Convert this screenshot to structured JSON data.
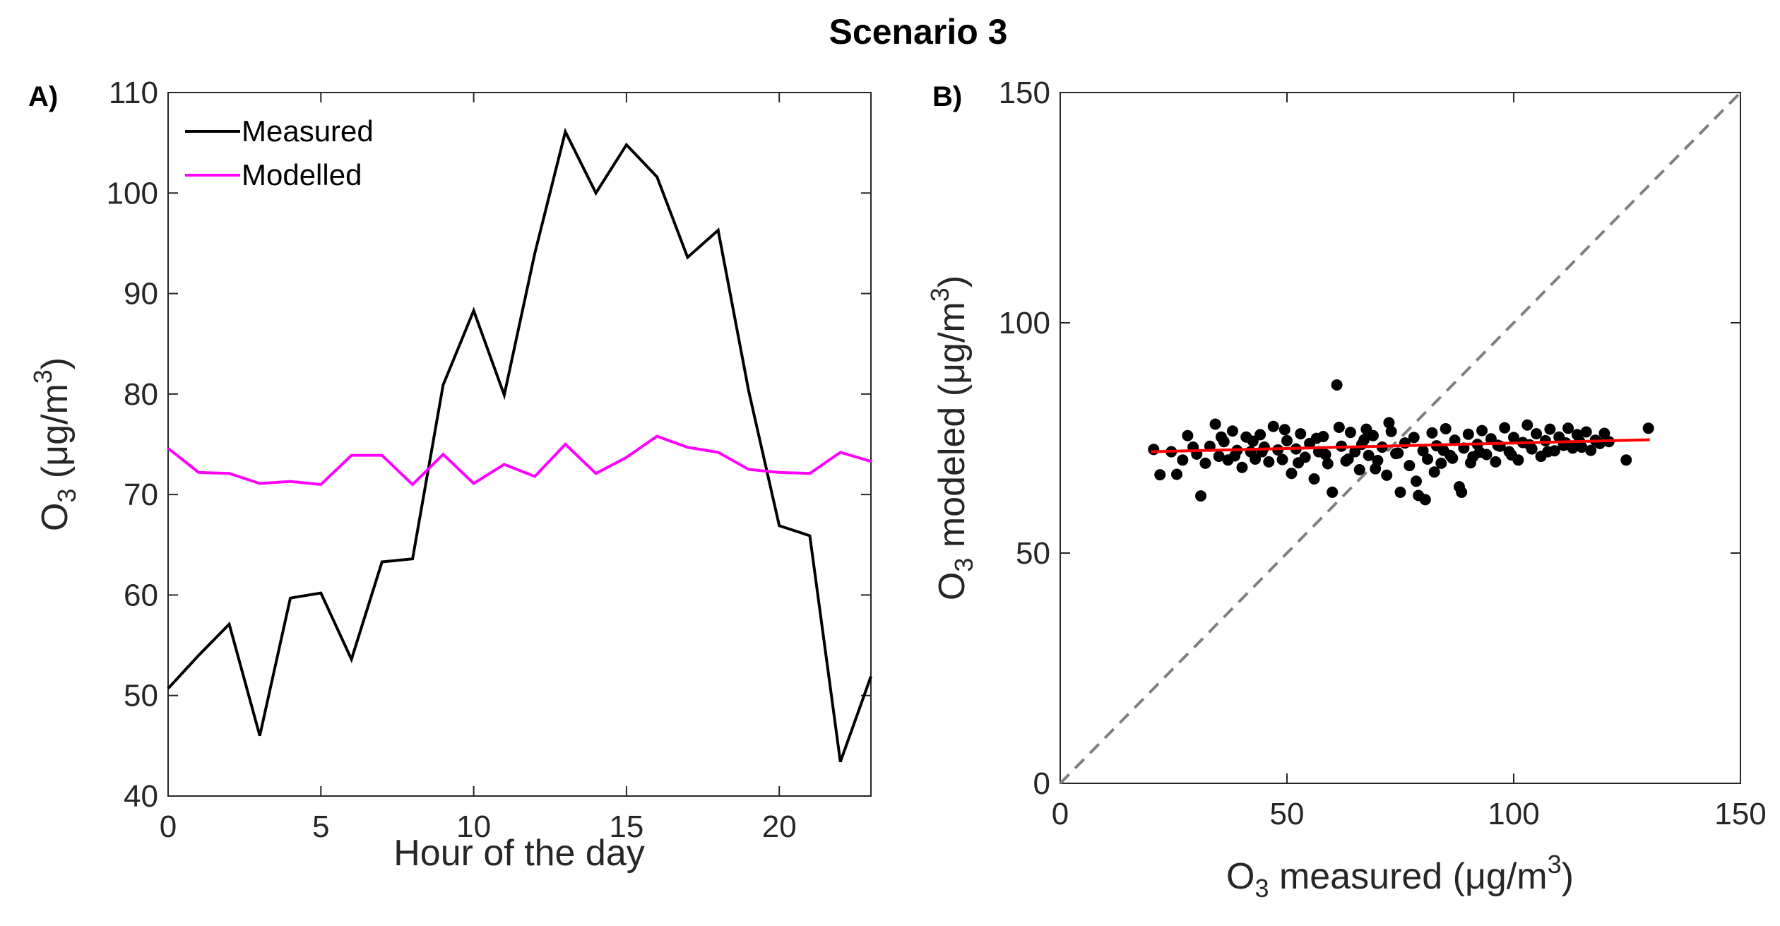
{
  "figure": {
    "title": "Scenario 3"
  },
  "chart_data": [
    {
      "panel_label": "A)",
      "type": "line",
      "xlabel": "Hour of the day",
      "ylabel": {
        "base": "O",
        "sub": "3",
        "unit_prefix": " (",
        "mu": "μ",
        "unit_mid": "g/m",
        "sup": "3",
        "unit_suffix": ")"
      },
      "xlim": [
        0,
        23
      ],
      "ylim": [
        40,
        110
      ],
      "xticks": [
        0,
        5,
        10,
        15,
        20
      ],
      "yticks": [
        40,
        50,
        60,
        70,
        80,
        90,
        100,
        110
      ],
      "legend_position": "top-left",
      "grid": false,
      "x": [
        0,
        1,
        2,
        3,
        4,
        5,
        6,
        7,
        8,
        9,
        10,
        11,
        12,
        13,
        14,
        15,
        16,
        17,
        18,
        19,
        20,
        21,
        22,
        23
      ],
      "series": [
        {
          "name": "Measured",
          "color": "#000000",
          "values": [
            50.7,
            54.0,
            57.1,
            46.0,
            59.7,
            60.2,
            53.6,
            63.3,
            63.6,
            80.9,
            88.3,
            79.9,
            94.0,
            106.1,
            100.0,
            104.8,
            101.6,
            93.6,
            96.3,
            80.3,
            66.9,
            65.9,
            43.4,
            51.9
          ]
        },
        {
          "name": "Modelled",
          "color": "#ff00ff",
          "values": [
            74.6,
            72.2,
            72.1,
            71.1,
            71.3,
            71.0,
            73.9,
            73.9,
            71.0,
            74.0,
            71.1,
            73.0,
            71.8,
            75.0,
            72.1,
            73.7,
            75.8,
            74.7,
            74.2,
            72.5,
            72.2,
            72.1,
            74.2,
            73.3
          ]
        }
      ]
    },
    {
      "panel_label": "B)",
      "type": "scatter",
      "xlabel": {
        "base": "O",
        "sub": "3",
        "text": " measured (",
        "mu": "μ",
        "unit_mid": "g/m",
        "sup": "3",
        "unit_suffix": ")"
      },
      "ylabel": {
        "base": "O",
        "sub": "3",
        "text": " modeled (",
        "mu": "μ",
        "unit_mid": "g/m",
        "sup": "3",
        "unit_suffix": ")"
      },
      "xlim": [
        0,
        150
      ],
      "ylim": [
        0,
        150
      ],
      "xticks": [
        0,
        50,
        100,
        150
      ],
      "yticks": [
        0,
        50,
        100,
        150
      ],
      "grid": false,
      "point_color": "#000000",
      "identity_line": {
        "from": [
          0,
          0
        ],
        "to": [
          150,
          150
        ],
        "color": "#7f7f7f",
        "style": "dashed"
      },
      "fit_line": {
        "from": [
          20,
          72.0
        ],
        "to": [
          130,
          74.6
        ],
        "color": "#ff0000"
      },
      "points": [
        [
          20.6,
          72.5
        ],
        [
          22.0,
          67.0
        ],
        [
          24.5,
          72.0
        ],
        [
          25.7,
          67.1
        ],
        [
          27.0,
          70.2
        ],
        [
          28.1,
          75.5
        ],
        [
          29.3,
          73.0
        ],
        [
          30.1,
          71.5
        ],
        [
          31.0,
          62.4
        ],
        [
          32.0,
          69.5
        ],
        [
          33.0,
          73.2
        ],
        [
          34.2,
          78.0
        ],
        [
          35.0,
          71.0
        ],
        [
          36.1,
          74.2
        ],
        [
          37.0,
          70.2
        ],
        [
          38.0,
          76.5
        ],
        [
          39.0,
          72.3
        ],
        [
          40.1,
          68.6
        ],
        [
          41.0,
          75.2
        ],
        [
          42.0,
          72.0
        ],
        [
          43.0,
          70.4
        ],
        [
          44.1,
          75.7
        ],
        [
          45.0,
          73.0
        ],
        [
          46.0,
          69.8
        ],
        [
          47.0,
          77.5
        ],
        [
          48.0,
          72.4
        ],
        [
          49.0,
          70.3
        ],
        [
          50.0,
          74.4
        ],
        [
          51.0,
          67.3
        ],
        [
          52.0,
          72.6
        ],
        [
          53.0,
          75.9
        ],
        [
          54.0,
          70.8
        ],
        [
          55.0,
          73.8
        ],
        [
          56.0,
          66.1
        ],
        [
          57.0,
          72.0
        ],
        [
          58.0,
          75.3
        ],
        [
          59.0,
          69.4
        ],
        [
          60.0,
          63.2
        ],
        [
          61.0,
          86.5
        ],
        [
          62.0,
          73.2
        ],
        [
          63.0,
          70.0
        ],
        [
          64.0,
          76.2
        ],
        [
          65.0,
          72.0
        ],
        [
          66.0,
          68.1
        ],
        [
          67.0,
          74.6
        ],
        [
          68.0,
          71.2
        ],
        [
          69.0,
          75.5
        ],
        [
          70.0,
          70.1
        ],
        [
          71.0,
          73.0
        ],
        [
          72.0,
          66.9
        ],
        [
          73.0,
          76.4
        ],
        [
          74.0,
          71.6
        ],
        [
          75.0,
          63.2
        ],
        [
          76.0,
          73.9
        ],
        [
          77.0,
          69.0
        ],
        [
          78.0,
          75.1
        ],
        [
          79.0,
          62.5
        ],
        [
          80.0,
          72.2
        ],
        [
          81.0,
          70.4
        ],
        [
          82.0,
          76.1
        ],
        [
          83.0,
          73.3
        ],
        [
          84.0,
          69.5
        ],
        [
          85.0,
          77.0
        ],
        [
          86.0,
          71.2
        ],
        [
          87.0,
          74.5
        ],
        [
          88.0,
          64.4
        ],
        [
          89.0,
          72.8
        ],
        [
          90.0,
          75.8
        ],
        [
          91.0,
          70.9
        ],
        [
          92.0,
          73.6
        ],
        [
          93.0,
          76.6
        ],
        [
          94.0,
          71.4
        ],
        [
          95.0,
          74.8
        ],
        [
          96.0,
          69.8
        ],
        [
          97.0,
          73.2
        ],
        [
          98.0,
          77.2
        ],
        [
          99.0,
          72.0
        ],
        [
          100.0,
          75.1
        ],
        [
          101.0,
          70.2
        ],
        [
          102.0,
          74.0
        ],
        [
          103.0,
          77.8
        ],
        [
          104.0,
          72.6
        ],
        [
          105.0,
          75.9
        ],
        [
          106.0,
          71.0
        ],
        [
          107.0,
          74.4
        ],
        [
          108.0,
          76.9
        ],
        [
          109.0,
          72.2
        ],
        [
          110.0,
          75.2
        ],
        [
          111.0,
          73.4
        ],
        [
          112.0,
          77.1
        ],
        [
          113.0,
          72.8
        ],
        [
          114.0,
          75.7
        ],
        [
          115.0,
          73.0
        ],
        [
          116.0,
          76.3
        ],
        [
          117.0,
          72.3
        ],
        [
          118.0,
          74.5
        ],
        [
          119.0,
          73.8
        ],
        [
          120.0,
          76.0
        ],
        [
          121.0,
          74.2
        ],
        [
          124.8,
          70.2
        ],
        [
          129.7,
          77.1
        ],
        [
          38.5,
          71.1
        ],
        [
          44.5,
          72.0
        ],
        [
          52.5,
          69.6
        ],
        [
          58.5,
          71.4
        ],
        [
          63.5,
          70.4
        ],
        [
          66.5,
          73.6
        ],
        [
          69.5,
          68.3
        ],
        [
          74.5,
          71.7
        ],
        [
          78.5,
          65.6
        ],
        [
          80.5,
          61.6
        ],
        [
          82.5,
          67.6
        ],
        [
          84.5,
          72.3
        ],
        [
          86.5,
          70.6
        ],
        [
          88.5,
          63.2
        ],
        [
          90.5,
          69.6
        ],
        [
          92.5,
          71.9
        ],
        [
          96.5,
          73.4
        ],
        [
          99.5,
          71.3
        ],
        [
          103.5,
          73.5
        ],
        [
          107.5,
          72.0
        ],
        [
          111.5,
          73.9
        ],
        [
          114.5,
          74.3
        ],
        [
          35.5,
          75.2
        ],
        [
          42.5,
          74.3
        ],
        [
          49.5,
          76.8
        ],
        [
          56.5,
          74.9
        ],
        [
          61.5,
          77.3
        ],
        [
          67.5,
          76.9
        ],
        [
          72.5,
          78.3
        ]
      ]
    }
  ]
}
